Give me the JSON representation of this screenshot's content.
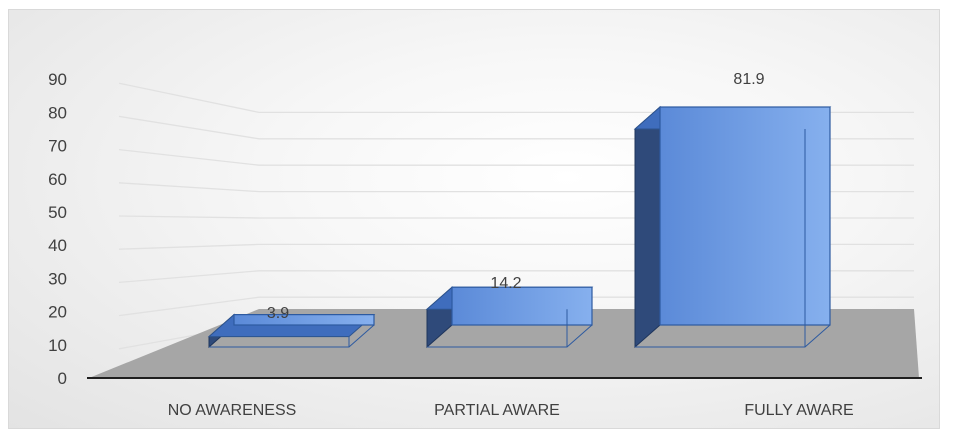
{
  "chart_data": {
    "type": "bar",
    "title": "",
    "xlabel": "",
    "ylabel": "",
    "categories": [
      "NO AWARENESS",
      "PARTIAL AWARE",
      "FULLY AWARE"
    ],
    "values": [
      3.9,
      14.2,
      81.9
    ],
    "data_labels": [
      "3.9",
      "14.2",
      "81.9"
    ],
    "ylim": [
      0,
      90
    ],
    "yticks": [
      "0",
      "10",
      "20",
      "30",
      "40",
      "50",
      "60",
      "70",
      "80",
      "90"
    ],
    "grid": true,
    "three_d": true,
    "legend": "none",
    "colors": {
      "bar_front": "#4f7fd0",
      "bar_front_light": "#7aa6ea",
      "bar_top": "#3f6dbd",
      "bar_side": "#2f4a7a",
      "floor": "#a6a6a6",
      "grid": "#e1e1e1",
      "baseline": "#1f1f1f"
    }
  }
}
